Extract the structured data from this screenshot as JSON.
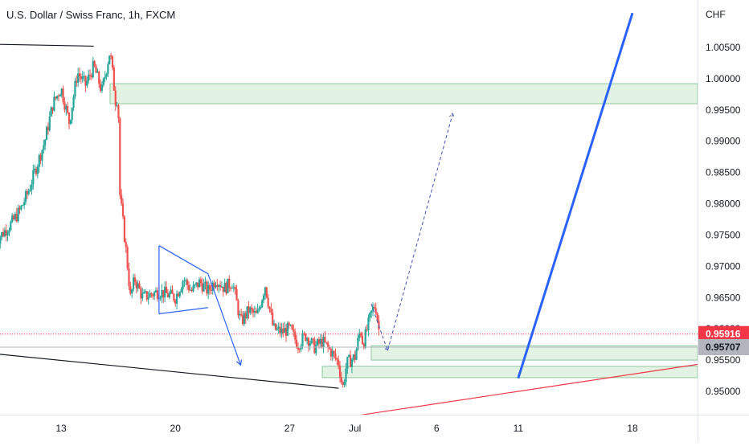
{
  "title": "U.S. Dollar / Swiss Franc, 1h, FXCM",
  "chart_data": {
    "type": "candlestick",
    "symbol": "USDCHF",
    "timeframe": "1h",
    "source": "FXCM",
    "currency": "CHF",
    "ylim": [
      0.9445,
      1.0105
    ],
    "y_ticks": [
      "1.00500",
      "1.00000",
      "0.99500",
      "0.99000",
      "0.98500",
      "0.98000",
      "0.97500",
      "0.97000",
      "0.96500",
      "0.96000",
      "0.95500",
      "0.95000"
    ],
    "y_tick_values": [
      1.005,
      1.0,
      0.995,
      0.99,
      0.985,
      0.98,
      0.975,
      0.97,
      0.965,
      0.96,
      0.955,
      0.95
    ],
    "x_range": [
      "2022-06-09",
      "2022-07-25"
    ],
    "x_ticks": [
      {
        "label": "13",
        "date": "2022-06-13"
      },
      {
        "label": "20",
        "date": "2022-06-20"
      },
      {
        "label": "27",
        "date": "2022-06-27"
      },
      {
        "label": "Jul",
        "date": "2022-07-01"
      },
      {
        "label": "6",
        "date": "2022-07-06"
      },
      {
        "label": "11",
        "date": "2022-07-11"
      },
      {
        "label": "18",
        "date": "2022-07-18"
      }
    ],
    "price_path": [
      [
        "2022-06-09T00:00",
        0.974
      ],
      [
        "2022-06-10T00:00",
        0.977
      ],
      [
        "2022-06-10T12:00",
        0.979
      ],
      [
        "2022-06-11T00:00",
        0.982
      ],
      [
        "2022-06-12T00:00",
        0.99
      ],
      [
        "2022-06-12T12:00",
        0.996
      ],
      [
        "2022-06-13T00:00",
        0.9985
      ],
      [
        "2022-06-13T12:00",
        0.993
      ],
      [
        "2022-06-14T00:00",
        1.001
      ],
      [
        "2022-06-14T12:00",
        0.999
      ],
      [
        "2022-06-15T00:00",
        1.002
      ],
      [
        "2022-06-15T12:00",
        0.998
      ],
      [
        "2022-06-16T00:00",
        1.0045
      ],
      [
        "2022-06-16T08:00",
        0.9965
      ],
      [
        "2022-06-16T12:00",
        0.997
      ],
      [
        "2022-06-16T14:00",
        0.982
      ],
      [
        "2022-06-16T20:00",
        0.976
      ],
      [
        "2022-06-17T00:00",
        0.972
      ],
      [
        "2022-06-17T06:00",
        0.965
      ],
      [
        "2022-06-17T12:00",
        0.968
      ],
      [
        "2022-06-18T00:00",
        0.965
      ],
      [
        "2022-06-19T00:00",
        0.966
      ],
      [
        "2022-06-20T00:00",
        0.965
      ],
      [
        "2022-06-20T12:00",
        0.968
      ],
      [
        "2022-06-21T00:00",
        0.966
      ],
      [
        "2022-06-21T12:00",
        0.9675
      ],
      [
        "2022-06-22T00:00",
        0.966
      ],
      [
        "2022-06-22T12:00",
        0.968
      ],
      [
        "2022-06-23T00:00",
        0.9665
      ],
      [
        "2022-06-23T12:00",
        0.9675
      ],
      [
        "2022-06-24T00:00",
        0.961
      ],
      [
        "2022-06-24T12:00",
        0.963
      ],
      [
        "2022-06-25T00:00",
        0.962
      ],
      [
        "2022-06-25T12:00",
        0.967
      ],
      [
        "2022-06-26T00:00",
        0.96
      ],
      [
        "2022-06-26T12:00",
        0.9595
      ],
      [
        "2022-06-27T00:00",
        0.96
      ],
      [
        "2022-06-27T12:00",
        0.9575
      ],
      [
        "2022-06-28T00:00",
        0.959
      ],
      [
        "2022-06-28T12:00",
        0.957
      ],
      [
        "2022-06-29T00:00",
        0.958
      ],
      [
        "2022-06-29T12:00",
        0.9565
      ],
      [
        "2022-06-30T00:00",
        0.9545
      ],
      [
        "2022-06-30T06:00",
        0.9505
      ],
      [
        "2022-06-30T12:00",
        0.9545
      ],
      [
        "2022-07-01T00:00",
        0.9555
      ],
      [
        "2022-07-01T08:00",
        0.96
      ],
      [
        "2022-07-01T12:00",
        0.9575
      ],
      [
        "2022-07-02T00:00",
        0.9625
      ],
      [
        "2022-07-02T06:00",
        0.964
      ],
      [
        "2022-07-02T12:00",
        0.9592
      ]
    ],
    "last_price": "0.95916",
    "marked_price": "0.95707",
    "zones": [
      {
        "from": "2022-06-16",
        "to": "2022-07-25",
        "low": 0.996,
        "high": 0.9992
      },
      {
        "from": "2022-07-02",
        "to": "2022-07-25",
        "low": 0.955,
        "high": 0.9573
      },
      {
        "from": "2022-06-29",
        "to": "2022-07-25",
        "low": 0.9522,
        "high": 0.954
      }
    ],
    "drawings": [
      {
        "kind": "trendline",
        "color": "#131722",
        "points": [
          [
            "2022-06-09",
            1.0055
          ],
          [
            "2022-06-15",
            1.0052
          ]
        ]
      },
      {
        "kind": "trendline",
        "color": "#131722",
        "points": [
          [
            "2022-06-09",
            0.956
          ],
          [
            "2022-06-30",
            0.9505
          ]
        ]
      },
      {
        "kind": "trendline",
        "color": "#f23645",
        "points": [
          [
            "2022-06-27",
            0.9445
          ],
          [
            "2022-07-25",
            0.9555
          ]
        ]
      },
      {
        "kind": "trendline",
        "color": "#2962ff",
        "points": [
          [
            "2022-07-11",
            0.9521
          ],
          [
            "2022-07-18",
            1.0105
          ]
        ]
      },
      {
        "kind": "triangle",
        "color": "#2962ff",
        "points": [
          [
            "2022-06-19",
            0.9733
          ],
          [
            "2022-06-22",
            0.9688
          ],
          [
            "2022-06-22",
            0.9634
          ],
          [
            "2022-06-19",
            0.9624
          ]
        ]
      },
      {
        "kind": "arrow",
        "color": "#2962ff",
        "points": [
          [
            "2022-06-22",
            0.9688
          ],
          [
            "2022-06-24",
            0.9542
          ]
        ]
      },
      {
        "kind": "dashed-arrow",
        "color": "#2962ff",
        "points": [
          [
            "2022-07-02",
            0.964
          ],
          [
            "2022-07-03",
            0.9565
          ],
          [
            "2022-07-07",
            0.9945
          ]
        ]
      }
    ]
  }
}
